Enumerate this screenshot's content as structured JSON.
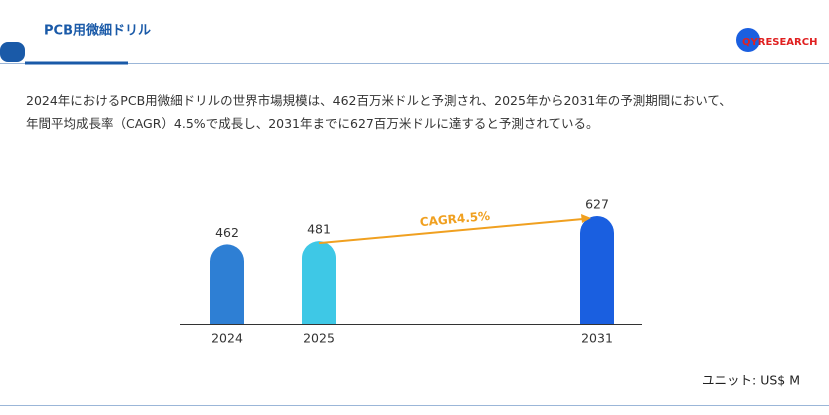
{
  "header": {
    "title": "PCB用微細ドリル",
    "logo": "QYRESEARCH"
  },
  "description": [
    "2024年におけるPCB用微細ドリルの世界市場規模は、462百万米ドルと予測され、2025年から2031年の予測期間において、",
    "年間平均成長率（CAGR）4.5%で成長し、2031年までに627百万米ドルに達すると予測されている。"
  ],
  "chart_data": {
    "type": "bar",
    "categories": [
      "2024",
      "2025",
      "2031"
    ],
    "values": [
      462,
      481,
      627
    ],
    "colors": [
      "#2e7fd4",
      "#3ec8e6",
      "#1a5fe0"
    ],
    "annotation": "CAGR4.5%",
    "annotation_color": "#f0a020"
  },
  "unit": "ユニット: US$ M"
}
